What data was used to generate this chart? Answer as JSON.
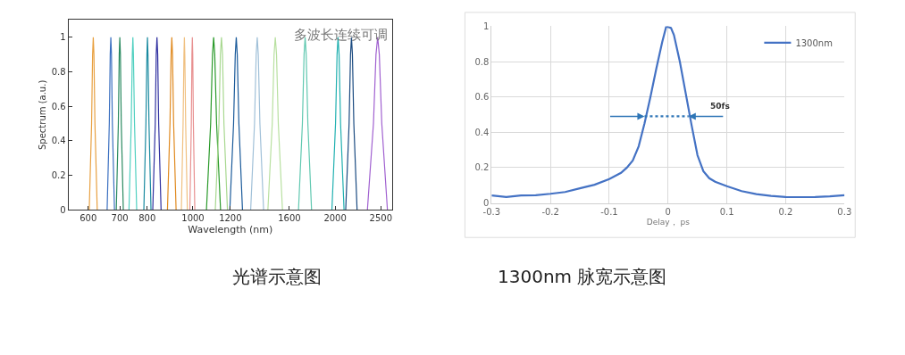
{
  "chart_data": [
    {
      "type": "line",
      "xlabel": "Wavelength (nm)",
      "ylabel": "Spectrum (a.u.)",
      "log": "x",
      "grid": false,
      "legend": false,
      "xlim": [
        545,
        2640
      ],
      "ylim": [
        0,
        1.1
      ],
      "xticks": [
        600,
        700,
        800,
        1000,
        1200,
        1600,
        2000,
        2500
      ],
      "yticks": [
        0,
        0.2,
        0.4,
        0.6,
        0.8,
        1
      ],
      "annotations": [
        "多波长连续可调",
        "光谱示意图"
      ],
      "series": [
        {
          "color": "#e8a040",
          "x": [
            603,
            610,
            613,
            615,
            617,
            620,
            627
          ],
          "values": [
            0,
            0.5,
            0.9,
            1,
            0.9,
            0.5,
            0
          ]
        },
        {
          "color": "#3a6fc0",
          "x": [
            658,
            665,
            668,
            670,
            672,
            675,
            682
          ],
          "values": [
            0,
            0.5,
            0.9,
            1,
            0.9,
            0.5,
            0
          ]
        },
        {
          "color": "#2a8a60",
          "x": [
            688,
            695,
            698,
            700,
            702,
            705,
            712
          ],
          "values": [
            0,
            0.5,
            0.9,
            1,
            0.9,
            0.5,
            0
          ]
        },
        {
          "color": "#50d0c0",
          "x": [
            732,
            740,
            744,
            746,
            748,
            752,
            760
          ],
          "values": [
            0,
            0.5,
            0.9,
            1,
            0.9,
            0.5,
            0
          ]
        },
        {
          "color": "#1a8aa0",
          "x": [
            787,
            795,
            799,
            801,
            803,
            807,
            815
          ],
          "values": [
            0,
            0.5,
            0.9,
            1,
            0.9,
            0.5,
            0
          ]
        },
        {
          "color": "#3030a0",
          "x": [
            822,
            832,
            836,
            839,
            842,
            846,
            856
          ],
          "values": [
            0,
            0.5,
            0.9,
            1,
            0.9,
            0.5,
            0
          ]
        },
        {
          "color": "#e08a20",
          "x": [
            883,
            894,
            899,
            902,
            905,
            910,
            921
          ],
          "values": [
            0,
            0.5,
            0.9,
            1,
            0.9,
            0.5,
            0
          ]
        },
        {
          "color": "#f0c080",
          "x": [
            945,
            953,
            957,
            959,
            961,
            965,
            973
          ],
          "values": [
            0,
            0.5,
            0.9,
            1,
            0.9,
            0.5,
            0
          ]
        },
        {
          "color": "#e89090",
          "x": [
            985,
            992,
            995,
            997,
            999,
            1002,
            1009
          ],
          "values": [
            0,
            0.5,
            0.9,
            1,
            0.9,
            0.5,
            0
          ]
        },
        {
          "color": "#2a9a2a",
          "x": [
            1068,
            1090,
            1100,
            1106,
            1112,
            1122,
            1144
          ],
          "values": [
            0,
            0.5,
            0.9,
            1,
            0.9,
            0.5,
            0
          ]
        },
        {
          "color": "#a8d890",
          "x": [
            1115,
            1135,
            1143,
            1149,
            1155,
            1163,
            1183
          ],
          "values": [
            0,
            0.5,
            0.9,
            1,
            0.9,
            0.5,
            0
          ]
        },
        {
          "color": "#1a5a9a",
          "x": [
            1197,
            1219,
            1229,
            1235,
            1241,
            1251,
            1273
          ],
          "values": [
            0,
            0.5,
            0.9,
            1,
            0.9,
            0.5,
            0
          ]
        },
        {
          "color": "#a0c0d8",
          "x": [
            1325,
            1350,
            1361,
            1368,
            1375,
            1386,
            1411
          ],
          "values": [
            0,
            0.5,
            0.9,
            1,
            0.9,
            0.5,
            0
          ]
        },
        {
          "color": "#b8e0a0",
          "x": [
            1441,
            1472,
            1485,
            1494,
            1503,
            1516,
            1547
          ],
          "values": [
            0,
            0.5,
            0.9,
            1,
            0.9,
            0.5,
            0
          ]
        },
        {
          "color": "#60c8b0",
          "x": [
            1673,
            1705,
            1719,
            1728,
            1737,
            1751,
            1783
          ],
          "values": [
            0,
            0.5,
            0.9,
            1,
            0.9,
            0.5,
            0
          ]
        },
        {
          "color": "#20b0b0",
          "x": [
            1969,
            2004,
            2019,
            2029,
            2039,
            2054,
            2089
          ],
          "values": [
            0,
            0.5,
            0.9,
            1,
            0.9,
            0.5,
            0
          ]
        },
        {
          "color": "#1a4a80",
          "x": [
            2106,
            2141,
            2156,
            2166,
            2176,
            2191,
            2226
          ],
          "values": [
            0,
            0.5,
            0.9,
            1,
            0.9,
            0.5,
            0
          ]
        },
        {
          "color": "#a060d0",
          "x": [
            2341,
            2411,
            2441,
            2461,
            2481,
            2511,
            2581
          ],
          "values": [
            0,
            0.5,
            0.9,
            1,
            0.9,
            0.5,
            0
          ]
        }
      ]
    },
    {
      "type": "line",
      "xlabel": "Delay， ps",
      "grid": true,
      "legend": "top right",
      "xlim": [
        -0.3,
        0.3
      ],
      "ylim": [
        0,
        1
      ],
      "xticks": [
        -0.3,
        -0.2,
        -0.1,
        0,
        0.1,
        0.2,
        0.3
      ],
      "yticks": [
        0,
        0.2,
        0.4,
        0.6,
        0.8,
        1
      ],
      "annotations": [
        {
          "text": "50fs",
          "x": 0.035,
          "y": 0.49
        },
        "1300nm 脉宽示意图"
      ],
      "series": [
        {
          "name": "1300nm",
          "color": "#4472c4",
          "x": [
            -0.3,
            -0.275,
            -0.25,
            -0.225,
            -0.2,
            -0.175,
            -0.15,
            -0.125,
            -0.1,
            -0.08,
            -0.07,
            -0.06,
            -0.05,
            -0.04,
            -0.03,
            -0.02,
            -0.01,
            -0.003,
            0.005,
            0.01,
            0.02,
            0.03,
            0.04,
            0.05,
            0.06,
            0.07,
            0.08,
            0.1,
            0.125,
            0.15,
            0.175,
            0.2,
            0.225,
            0.25,
            0.275,
            0.3
          ],
          "values": [
            0.042,
            0.034,
            0.042,
            0.044,
            0.052,
            0.062,
            0.083,
            0.103,
            0.135,
            0.17,
            0.2,
            0.24,
            0.32,
            0.45,
            0.6,
            0.76,
            0.91,
            1,
            0.99,
            0.95,
            0.8,
            0.62,
            0.44,
            0.27,
            0.18,
            0.14,
            0.12,
            0.095,
            0.067,
            0.05,
            0.04,
            0.034,
            0.033,
            0.034,
            0.037,
            0.044
          ]
        },
        {
          "color": "#2e75b6",
          "line_style": "dotted",
          "x": [
            -0.04,
            0.035
          ],
          "values": [
            0.49,
            0.49
          ]
        }
      ]
    }
  ]
}
